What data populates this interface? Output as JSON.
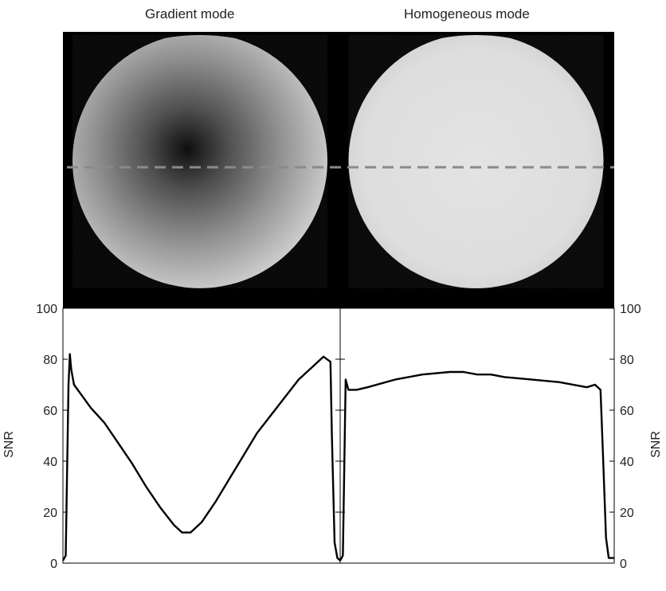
{
  "titles": {
    "left": "Gradient mode",
    "right": "Homogeneous mode"
  },
  "axis": {
    "ylabel": "SNR",
    "yticks": [
      0,
      20,
      40,
      60,
      80,
      100
    ]
  },
  "chart_data": [
    {
      "type": "line",
      "title": "Gradient mode",
      "ylabel": "SNR",
      "ylim": [
        0,
        100
      ],
      "xlim": [
        0,
        100
      ],
      "grid": false,
      "series": [
        {
          "x": [
            0,
            1,
            2,
            2.5,
            3,
            4,
            6,
            10,
            15,
            20,
            25,
            30,
            35,
            40,
            43,
            46,
            50,
            55,
            60,
            65,
            70,
            75,
            80,
            85,
            90,
            94,
            96.5,
            97,
            98,
            99,
            100
          ],
          "values": [
            1,
            3,
            70,
            82,
            76,
            70,
            67,
            61,
            55,
            47,
            39,
            30,
            22,
            15,
            12,
            12,
            16,
            24,
            33,
            42,
            51,
            58,
            65,
            72,
            77,
            81,
            79,
            50,
            8,
            2,
            1
          ]
        }
      ]
    },
    {
      "type": "line",
      "title": "Homogeneous mode",
      "ylabel": "SNR",
      "ylim": [
        0,
        100
      ],
      "xlim": [
        0,
        100
      ],
      "grid": false,
      "series": [
        {
          "x": [
            0,
            1,
            2,
            3,
            6,
            10,
            20,
            30,
            40,
            45,
            50,
            55,
            60,
            70,
            80,
            90,
            93,
            95,
            96,
            97,
            98,
            100
          ],
          "values": [
            1,
            3,
            72,
            68,
            68,
            69,
            72,
            74,
            75,
            75,
            74,
            74,
            73,
            72,
            71,
            69,
            70,
            68,
            40,
            10,
            2,
            2
          ]
        }
      ]
    }
  ]
}
